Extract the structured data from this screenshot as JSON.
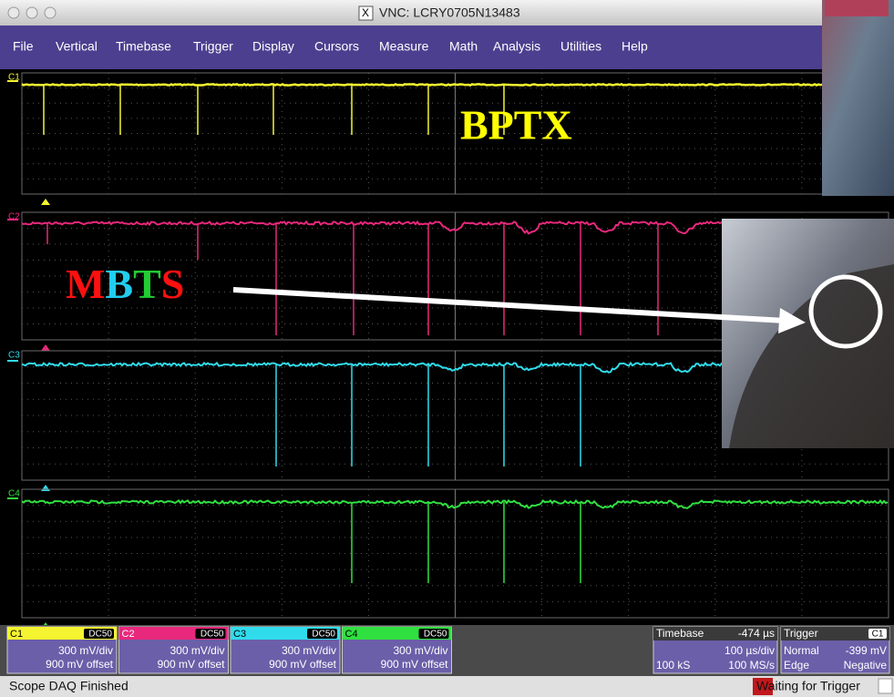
{
  "window": {
    "title": "VNC: LCRY0705N13483"
  },
  "menu": [
    "File",
    "Vertical",
    "Timebase",
    "Trigger",
    "Display",
    "Cursors",
    "Measure",
    "Math",
    "Analysis",
    "Utilities",
    "Help"
  ],
  "channels": [
    {
      "label": "C1",
      "coupling": "DC50",
      "scale": "300 mV/div",
      "offset": "900 mV offset"
    },
    {
      "label": "C2",
      "coupling": "DC50",
      "scale": "300 mV/div",
      "offset": "900 mV offset"
    },
    {
      "label": "C3",
      "coupling": "DC50",
      "scale": "300 mV/div",
      "offset": "900 mV offset"
    },
    {
      "label": "C4",
      "coupling": "DC50",
      "scale": "300 mV/div",
      "offset": "900 mV offset"
    }
  ],
  "annotations": {
    "bptx": "BPTX",
    "mbts": "MBTS"
  },
  "timebase": {
    "label": "Timebase",
    "delay": "-474 µs",
    "scale": "100 µs/div",
    "samples": "100 kS",
    "rate": "100 MS/s"
  },
  "trigger": {
    "label": "Trigger",
    "source": "C1",
    "mode": "Normal",
    "level": "-399 mV",
    "type": "Edge",
    "slope": "Negative"
  },
  "status": {
    "left": "Scope DAQ Finished",
    "right": "Waiting for Trigger"
  }
}
